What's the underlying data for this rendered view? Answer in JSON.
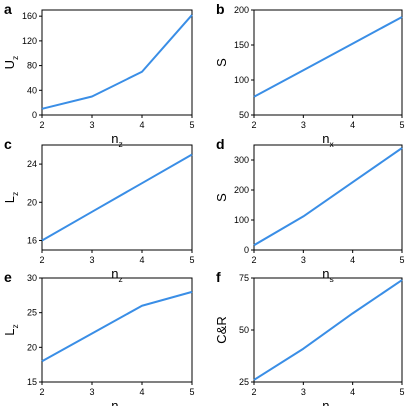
{
  "line_color": "#3a8ee6",
  "chart_data": [
    {
      "panel": "a",
      "type": "line",
      "x": [
        2,
        3,
        4,
        5
      ],
      "y": [
        10,
        30,
        70,
        162
      ],
      "xlim": [
        2,
        5
      ],
      "ylim": [
        0,
        170
      ],
      "xticks": [
        "2",
        "3",
        "4",
        "5"
      ],
      "yticks": [
        "0",
        "40",
        "80",
        "120",
        "160"
      ],
      "xlabel": "n",
      "xlabel_sub": "z",
      "ylabel": "U",
      "ylabel_sub": "z"
    },
    {
      "panel": "b",
      "type": "line",
      "x": [
        2,
        3,
        4,
        5
      ],
      "y": [
        76,
        114,
        152,
        190
      ],
      "xlim": [
        2,
        5
      ],
      "ylim": [
        50,
        200
      ],
      "xticks": [
        "2",
        "3",
        "4",
        "5"
      ],
      "yticks": [
        "50",
        "100",
        "150",
        "200"
      ],
      "xlabel": "n",
      "xlabel_sub": "x",
      "ylabel": "S",
      "ylabel_sub": ""
    },
    {
      "panel": "c",
      "type": "line",
      "x": [
        2,
        3,
        4,
        5
      ],
      "y": [
        16,
        19,
        22,
        25
      ],
      "xlim": [
        2,
        5
      ],
      "ylim": [
        15,
        26
      ],
      "xticks": [
        "2",
        "3",
        "4",
        "5"
      ],
      "yticks": [
        "16",
        "20",
        "24"
      ],
      "xlabel": "n",
      "xlabel_sub": "z",
      "ylabel": "L",
      "ylabel_sub": "z"
    },
    {
      "panel": "d",
      "type": "line",
      "x": [
        2,
        3,
        4,
        5
      ],
      "y": [
        16,
        112,
        226,
        340
      ],
      "xlim": [
        2,
        5
      ],
      "ylim": [
        0,
        350
      ],
      "xticks": [
        "2",
        "3",
        "4",
        "5"
      ],
      "yticks": [
        "0",
        "100",
        "200",
        "300"
      ],
      "xlabel": "n",
      "xlabel_sub": "s",
      "ylabel": "S",
      "ylabel_sub": ""
    },
    {
      "panel": "e",
      "type": "line",
      "x": [
        2,
        3,
        4,
        5
      ],
      "y": [
        18,
        22,
        26,
        28
      ],
      "xlim": [
        2,
        5
      ],
      "ylim": [
        15,
        30
      ],
      "xticks": [
        "2",
        "3",
        "4",
        "5"
      ],
      "yticks": [
        "15",
        "20",
        "25",
        "30"
      ],
      "xlabel": "n",
      "xlabel_sub": "x",
      "ylabel": "L",
      "ylabel_sub": "z"
    },
    {
      "panel": "f",
      "type": "line",
      "x": [
        2,
        3,
        4,
        5
      ],
      "y": [
        26,
        41,
        58,
        74
      ],
      "xlim": [
        2,
        5
      ],
      "ylim": [
        25,
        75
      ],
      "xticks": [
        "2",
        "3",
        "4",
        "5"
      ],
      "yticks": [
        "25",
        "50",
        "75"
      ],
      "xlabel": "n",
      "xlabel_sub": "s",
      "ylabel": "C&R",
      "ylabel_sub": ""
    }
  ]
}
